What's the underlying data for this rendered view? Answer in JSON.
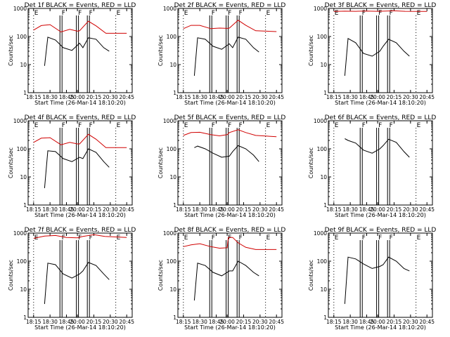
{
  "chart_data": [
    {
      "type": "line",
      "title": "Det 1f BLACK = Events, RED = LLD",
      "ylabel": "Counts/sec",
      "xlabel": "Start Time (26-Mar-14 18:10:20)",
      "xticks": [
        "18:15",
        "18:30",
        "18:45",
        "20:00",
        "20:15",
        "20:30",
        "20:45"
      ],
      "yticks": [
        "1",
        "10",
        "100",
        "1000"
      ],
      "ylim": [
        1,
        1000
      ],
      "yscale": "log",
      "flags": [
        {
          "x": "18:15",
          "text": "E"
        },
        {
          "x": "18:40",
          "text": "F"
        },
        {
          "x": "18:55",
          "text": "F"
        },
        {
          "x": "20:10",
          "text": "F"
        },
        {
          "x": "20:35",
          "text": "E"
        }
      ],
      "series": [
        {
          "color": "#000000",
          "x": [
            "18:25",
            "18:28",
            "18:35",
            "18:42",
            "18:50",
            "18:57",
            "20:05",
            "20:10",
            "20:17",
            "20:24",
            "20:29"
          ],
          "y": [
            9,
            95,
            75,
            40,
            32,
            58,
            40,
            90,
            80,
            40,
            30
          ]
        },
        {
          "color": "#d00000",
          "x": [
            "18:15",
            "18:22",
            "18:30",
            "18:40",
            "18:48",
            "18:55",
            "20:02",
            "20:10",
            "20:17",
            "20:26",
            "20:45"
          ],
          "y": [
            170,
            245,
            265,
            145,
            180,
            155,
            160,
            350,
            240,
            130,
            130
          ]
        }
      ]
    },
    {
      "type": "line",
      "title": "Det 2f BLACK = Events, RED = LLD",
      "ylabel": "Counts/sec",
      "xlabel": "Start Time (26-Mar-14 18:10:20)",
      "xticks": [
        "18:15",
        "18:30",
        "18:45",
        "20:00",
        "20:15",
        "20:30",
        "20:45"
      ],
      "yticks": [
        "1",
        "10",
        "100",
        "1000"
      ],
      "ylim": [
        1,
        1000
      ],
      "yscale": "log",
      "flags": [
        {
          "x": "18:15",
          "text": "E"
        },
        {
          "x": "18:40",
          "text": "F"
        },
        {
          "x": "18:55",
          "text": "F"
        },
        {
          "x": "20:10",
          "text": "F"
        },
        {
          "x": "20:35",
          "text": "E"
        }
      ],
      "series": [
        {
          "color": "#000000",
          "x": [
            "18:25",
            "18:28",
            "18:35",
            "18:42",
            "18:50",
            "18:57",
            "20:05",
            "20:10",
            "20:17",
            "20:24",
            "20:29"
          ],
          "y": [
            4,
            90,
            80,
            45,
            35,
            55,
            40,
            95,
            80,
            40,
            28
          ]
        },
        {
          "color": "#d00000",
          "x": [
            "18:15",
            "18:22",
            "18:30",
            "18:40",
            "18:48",
            "18:55",
            "20:02",
            "20:10",
            "20:17",
            "20:26",
            "20:45"
          ],
          "y": [
            190,
            250,
            250,
            190,
            200,
            195,
            200,
            380,
            250,
            160,
            150
          ]
        }
      ]
    },
    {
      "type": "line",
      "title": "Det 3f BLACK = Events, RED = LLD",
      "ylabel": "Counts/sec",
      "xlabel": "Start Time (26-Mar-14 18:10:20)",
      "xticks": [
        "18:15",
        "18:30",
        "18:45",
        "20:00",
        "20:15",
        "20:30",
        "20:45"
      ],
      "yticks": [
        "1",
        "10",
        "100",
        "1000"
      ],
      "ylim": [
        1,
        1000
      ],
      "yscale": "log",
      "flags": [
        {
          "x": "18:15",
          "text": "E"
        },
        {
          "x": "18:40",
          "text": "F"
        },
        {
          "x": "18:55",
          "text": "F"
        },
        {
          "x": "20:10",
          "text": "F"
        },
        {
          "x": "20:35",
          "text": "E"
        }
      ],
      "series": [
        {
          "color": "#000000",
          "x": [
            "18:25",
            "18:28",
            "18:35",
            "18:42",
            "18:50",
            "18:57",
            "20:05",
            "20:10",
            "20:17",
            "20:24",
            "20:29"
          ],
          "y": [
            4,
            85,
            60,
            25,
            20,
            30,
            45,
            80,
            60,
            30,
            20
          ]
        },
        {
          "color": "#d00000",
          "x": [
            "18:15",
            "18:25",
            "18:35",
            "18:45",
            "18:55",
            "20:05",
            "20:15",
            "20:25",
            "20:45"
          ],
          "y": [
            780,
            800,
            790,
            810,
            790,
            800,
            820,
            790,
            780
          ]
        }
      ]
    },
    {
      "type": "line",
      "title": "Det 4f BLACK = Events, RED = LLD",
      "ylabel": "Counts/sec",
      "xlabel": "Start Time (26-Mar-14 18:10:20)",
      "xticks": [
        "18:15",
        "18:30",
        "18:45",
        "20:00",
        "20:15",
        "20:30",
        "20:45"
      ],
      "yticks": [
        "1",
        "10",
        "100",
        "1000"
      ],
      "ylim": [
        1,
        1000
      ],
      "yscale": "log",
      "flags": [
        {
          "x": "18:15",
          "text": "E"
        },
        {
          "x": "18:40",
          "text": "F"
        },
        {
          "x": "18:55",
          "text": "F"
        },
        {
          "x": "20:10",
          "text": "F"
        },
        {
          "x": "20:35",
          "text": "E"
        }
      ],
      "series": [
        {
          "color": "#000000",
          "x": [
            "18:25",
            "18:28",
            "18:35",
            "18:42",
            "18:50",
            "18:57",
            "20:05",
            "20:10",
            "20:17",
            "20:24",
            "20:29"
          ],
          "y": [
            4,
            85,
            80,
            45,
            35,
            50,
            45,
            100,
            75,
            35,
            22
          ]
        },
        {
          "color": "#d00000",
          "x": [
            "18:15",
            "18:22",
            "18:30",
            "18:40",
            "18:48",
            "18:55",
            "20:02",
            "20:10",
            "20:17",
            "20:26",
            "20:45"
          ],
          "y": [
            170,
            240,
            250,
            140,
            170,
            150,
            150,
            330,
            220,
            110,
            110
          ]
        }
      ]
    },
    {
      "type": "line",
      "title": "Det 5f BLACK = Events, RED = LLD",
      "ylabel": "Counts/sec",
      "xlabel": "Start Time (26-Mar-14 18:10:20)",
      "xticks": [
        "18:15",
        "18:30",
        "18:45",
        "20:00",
        "20:15",
        "20:30",
        "20:45"
      ],
      "yticks": [
        "1",
        "10",
        "100",
        "1000"
      ],
      "ylim": [
        1,
        1000
      ],
      "yscale": "log",
      "flags": [
        {
          "x": "18:15",
          "text": "E"
        },
        {
          "x": "18:40",
          "text": "F"
        },
        {
          "x": "18:55",
          "text": "F"
        },
        {
          "x": "20:10",
          "text": "F"
        },
        {
          "x": "20:35",
          "text": "E"
        }
      ],
      "series": [
        {
          "color": "#000000",
          "x": [
            "18:25",
            "18:28",
            "18:35",
            "18:42",
            "18:50",
            "18:57",
            "20:05",
            "20:10",
            "20:17",
            "20:24",
            "20:29"
          ],
          "y": [
            110,
            125,
            100,
            70,
            50,
            55,
            80,
            130,
            100,
            60,
            35
          ]
        },
        {
          "color": "#d00000",
          "x": [
            "18:15",
            "18:22",
            "18:30",
            "18:40",
            "18:48",
            "18:55",
            "20:02",
            "20:10",
            "20:17",
            "20:26",
            "20:45"
          ],
          "y": [
            300,
            380,
            390,
            320,
            290,
            320,
            380,
            480,
            380,
            300,
            270
          ]
        }
      ]
    },
    {
      "type": "line",
      "title": "Det 6f BLACK = Events, RED = LLD",
      "ylabel": "Counts/sec",
      "xlabel": "Start Time (26-Mar-14 18:10:20)",
      "xticks": [
        "18:15",
        "18:30",
        "18:45",
        "20:00",
        "20:15",
        "20:30",
        "20:45"
      ],
      "yticks": [
        "1",
        "10",
        "100",
        "1000"
      ],
      "ylim": [
        1,
        1000
      ],
      "yscale": "log",
      "flags": [
        {
          "x": "18:15",
          "text": "E"
        },
        {
          "x": "18:40",
          "text": "F"
        },
        {
          "x": "18:55",
          "text": "F"
        },
        {
          "x": "20:10",
          "text": "F"
        },
        {
          "x": "20:35",
          "text": "E"
        }
      ],
      "series": [
        {
          "color": "#000000",
          "x": [
            "18:25",
            "18:28",
            "18:35",
            "18:42",
            "18:50",
            "18:57",
            "20:05",
            "20:10",
            "20:17",
            "20:24",
            "20:29"
          ],
          "y": [
            230,
            200,
            160,
            90,
            70,
            100,
            130,
            220,
            170,
            80,
            50
          ]
        }
      ]
    },
    {
      "type": "line",
      "title": "Det 7f BLACK = Events, RED = LLD",
      "ylabel": "Counts/sec",
      "xlabel": "Start Time (26-Mar-14 18:10:20)",
      "xticks": [
        "18:15",
        "18:30",
        "18:45",
        "20:00",
        "20:15",
        "20:30",
        "20:45"
      ],
      "yticks": [
        "1",
        "10",
        "100",
        "1000"
      ],
      "ylim": [
        1,
        1000
      ],
      "yscale": "log",
      "flags": [
        {
          "x": "18:15",
          "text": "E"
        },
        {
          "x": "18:40",
          "text": "F"
        },
        {
          "x": "18:55",
          "text": "F"
        },
        {
          "x": "20:10",
          "text": "F"
        },
        {
          "x": "20:35",
          "text": "E"
        }
      ],
      "series": [
        {
          "color": "#000000",
          "x": [
            "18:25",
            "18:28",
            "18:35",
            "18:42",
            "18:50",
            "18:57",
            "20:05",
            "20:10",
            "20:17",
            "20:24",
            "20:29"
          ],
          "y": [
            3,
            85,
            75,
            35,
            25,
            35,
            45,
            90,
            70,
            35,
            22
          ]
        },
        {
          "color": "#d00000",
          "x": [
            "18:15",
            "18:25",
            "18:35",
            "18:45",
            "18:55",
            "20:05",
            "20:15",
            "20:25",
            "20:45"
          ],
          "y": [
            650,
            780,
            820,
            700,
            680,
            760,
            880,
            760,
            700
          ]
        }
      ]
    },
    {
      "type": "line",
      "title": "Det 8f BLACK = Events, RED = LLD",
      "ylabel": "Counts/sec",
      "xlabel": "Start Time (26-Mar-14 18:10:20)",
      "xticks": [
        "18:15",
        "18:30",
        "18:45",
        "20:00",
        "20:15",
        "20:30",
        "20:45"
      ],
      "yticks": [
        "1",
        "10",
        "100",
        "1000"
      ],
      "ylim": [
        1,
        1000
      ],
      "yscale": "log",
      "flags": [
        {
          "x": "18:15",
          "text": "E"
        },
        {
          "x": "18:40",
          "text": "F"
        },
        {
          "x": "18:55",
          "text": "F"
        },
        {
          "x": "20:10",
          "text": "F"
        },
        {
          "x": "20:35",
          "text": "E"
        }
      ],
      "series": [
        {
          "color": "#000000",
          "x": [
            "18:25",
            "18:28",
            "18:35",
            "18:42",
            "18:50",
            "18:57",
            "20:05",
            "20:10",
            "20:17",
            "20:24",
            "20:29"
          ],
          "y": [
            4,
            85,
            70,
            40,
            30,
            45,
            45,
            100,
            70,
            40,
            30
          ]
        },
        {
          "color": "#d00000",
          "x": [
            "18:15",
            "18:22",
            "18:30",
            "18:40",
            "18:48",
            "18:55",
            "20:00",
            "20:01",
            "20:05",
            "20:10",
            "20:17",
            "20:26",
            "20:45"
          ],
          "y": [
            330,
            380,
            420,
            330,
            290,
            300,
            300,
            700,
            700,
            450,
            310,
            260,
            260
          ]
        }
      ]
    },
    {
      "type": "line",
      "title": "Det 9f BLACK = Events, RED = LLD",
      "ylabel": "Counts/sec",
      "xlabel": "Start Time (26-Mar-14 18:10:20)",
      "xticks": [
        "18:15",
        "18:30",
        "18:45",
        "20:00",
        "20:15",
        "20:30",
        "20:45"
      ],
      "yticks": [
        "1",
        "10",
        "100",
        "1000"
      ],
      "ylim": [
        1,
        1000
      ],
      "yscale": "log",
      "flags": [
        {
          "x": "18:15",
          "text": "E"
        },
        {
          "x": "18:40",
          "text": "F"
        },
        {
          "x": "18:55",
          "text": "F"
        },
        {
          "x": "20:10",
          "text": "F"
        },
        {
          "x": "20:35",
          "text": "E"
        }
      ],
      "series": [
        {
          "color": "#000000",
          "x": [
            "18:25",
            "18:28",
            "18:35",
            "18:42",
            "18:50",
            "18:57",
            "20:05",
            "20:10",
            "20:17",
            "20:24",
            "20:29"
          ],
          "y": [
            3,
            140,
            120,
            80,
            55,
            65,
            75,
            140,
            100,
            55,
            45
          ]
        }
      ]
    }
  ]
}
